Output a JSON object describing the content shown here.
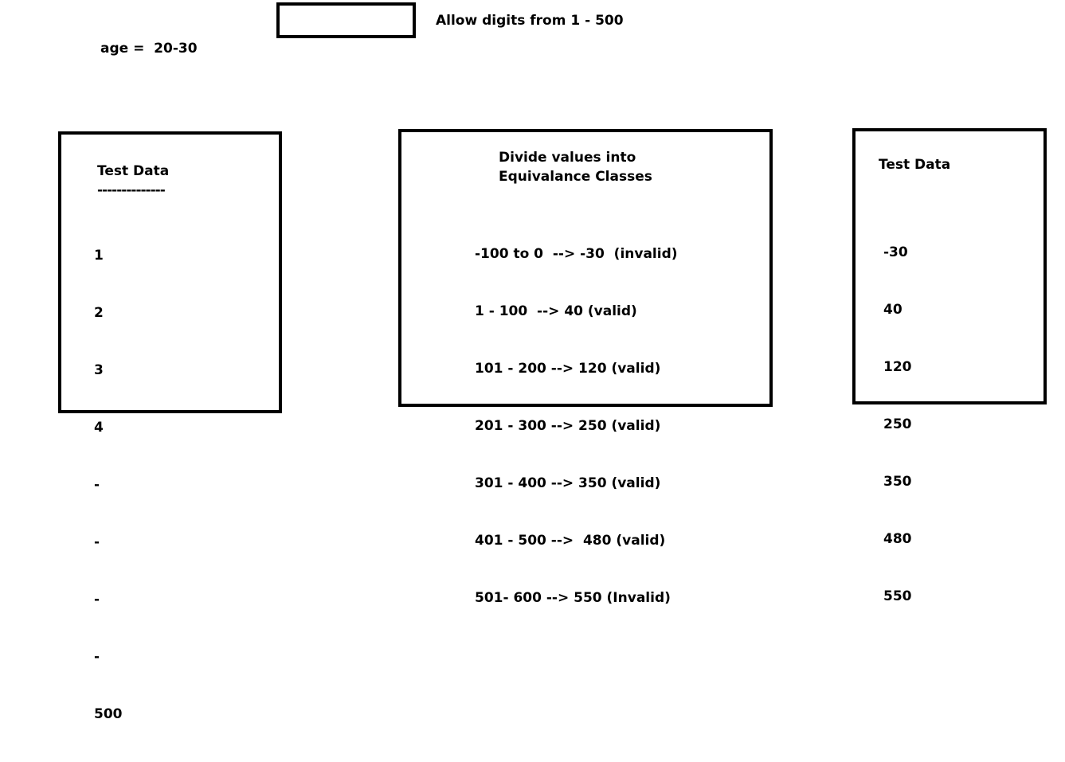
{
  "top": {
    "age_label": "age =  20-30",
    "input_hint": "Allow digits from 1 - 500"
  },
  "left_panel": {
    "title": "Test Data",
    "underline": "--------------",
    "values": [
      "1",
      "2",
      "3",
      "4",
      "-",
      "-",
      "-",
      "-",
      "500"
    ]
  },
  "middle_panel": {
    "title_line1": "Divide values into",
    "title_line2": "Equivalance Classes",
    "classes": [
      "-100 to 0  --> -30  (invalid)",
      "1 - 100  --> 40 (valid)",
      "101 - 200 --> 120 (valid)",
      "201 - 300 --> 250 (valid)",
      "301 - 400 --> 350 (valid)",
      "401 - 500 -->  480 (valid)",
      "501- 600 --> 550 (Invalid)"
    ]
  },
  "right_panel": {
    "title": "Test Data",
    "values": [
      "-30",
      "40",
      "120",
      "250",
      "350",
      "480",
      "550"
    ]
  }
}
